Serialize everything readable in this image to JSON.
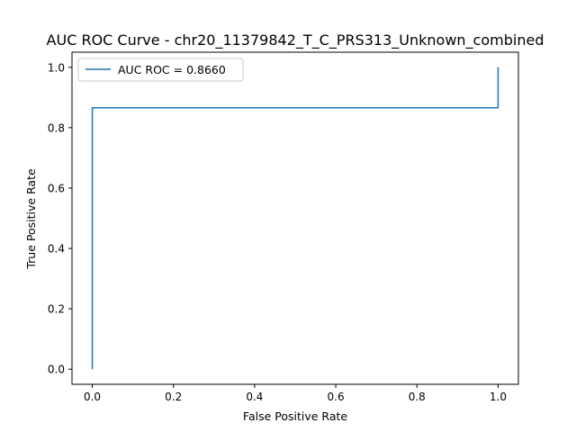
{
  "chart_data": {
    "type": "line",
    "title": "AUC ROC Curve - chr20_11379842_T_C_PRS313_Unknown_combined",
    "xlabel": "False Positive Rate",
    "ylabel": "True Positive Rate",
    "xlim": [
      -0.05,
      1.05
    ],
    "ylim": [
      -0.05,
      1.05
    ],
    "xticks": [
      0.0,
      0.2,
      0.4,
      0.6,
      0.8,
      1.0
    ],
    "xtick_labels": [
      "0.0",
      "0.2",
      "0.4",
      "0.6",
      "0.8",
      "1.0"
    ],
    "yticks": [
      0.0,
      0.2,
      0.4,
      0.6,
      0.8,
      1.0
    ],
    "ytick_labels": [
      "0.0",
      "0.2",
      "0.4",
      "0.6",
      "0.8",
      "1.0"
    ],
    "grid": false,
    "legend_position": "top-left",
    "series": [
      {
        "name": "AUC ROC = 0.8660",
        "color": "#1f77b4",
        "x": [
          0.0,
          0.0,
          1.0,
          1.0
        ],
        "y": [
          0.0,
          0.866,
          0.866,
          1.0
        ]
      }
    ]
  }
}
